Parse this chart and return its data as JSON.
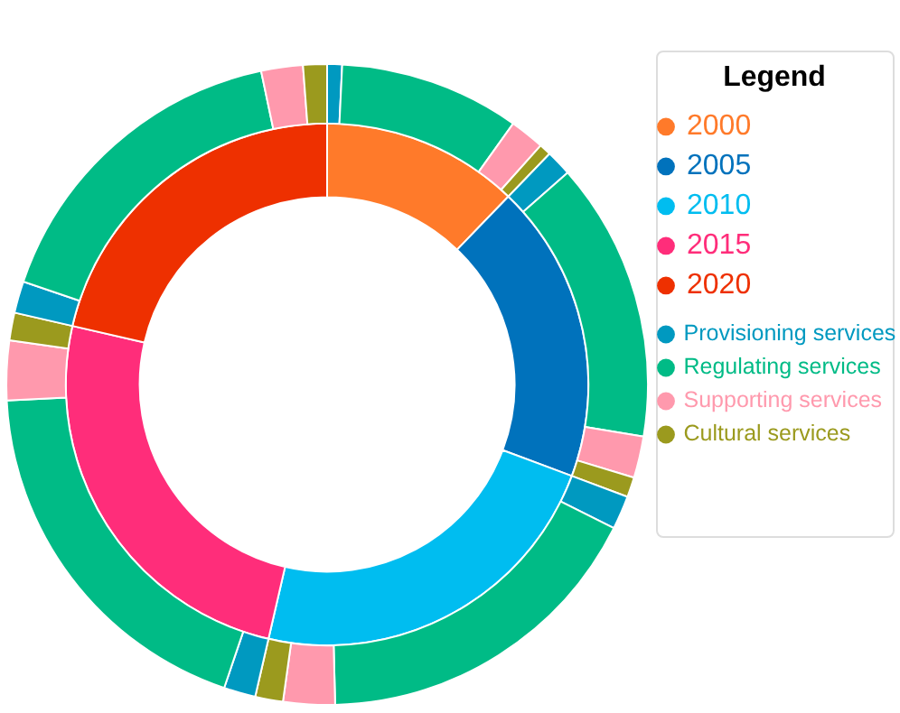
{
  "chart_data": [
    {
      "type": "donut",
      "legend_title": "Legend",
      "legend": "right",
      "categories": [
        "2000",
        "2005",
        "2010",
        "2015",
        "2020"
      ],
      "values": [
        12.2,
        18.5,
        22.9,
        25.0,
        21.4
      ],
      "colors": [
        "#ff7a2a",
        "#0072bc",
        "#00bdf0",
        "#ff2d7a",
        "#ee3000"
      ]
    },
    {
      "type": "donut",
      "legend": "right",
      "categories": [
        "Provisioning services",
        "Regulating services",
        "Supporting services",
        "Cultural services",
        null,
        null,
        null,
        null,
        null,
        null,
        null,
        null,
        null,
        null,
        null,
        null,
        null,
        null,
        null,
        null
      ],
      "values": [
        0.75,
        9.1,
        1.75,
        0.6,
        1.3,
        14.1,
        2.1,
        1.0,
        1.7,
        17.2,
        2.6,
        1.4,
        1.6,
        19.0,
        3.0,
        1.4,
        1.6,
        16.5,
        2.1,
        1.2
      ],
      "colors": [
        "#0099c0",
        "#00bb86",
        "#ff99ad",
        "#9b9a1e",
        "#0099c0",
        "#00bb86",
        "#ff99ad",
        "#9b9a1e",
        "#0099c0",
        "#00bb86",
        "#ff99ad",
        "#9b9a1e",
        "#0099c0",
        "#00bb86",
        "#ff99ad",
        "#9b9a1e",
        "#0099c0",
        "#00bb86",
        "#ff99ad",
        "#9b9a1e"
      ]
    }
  ]
}
